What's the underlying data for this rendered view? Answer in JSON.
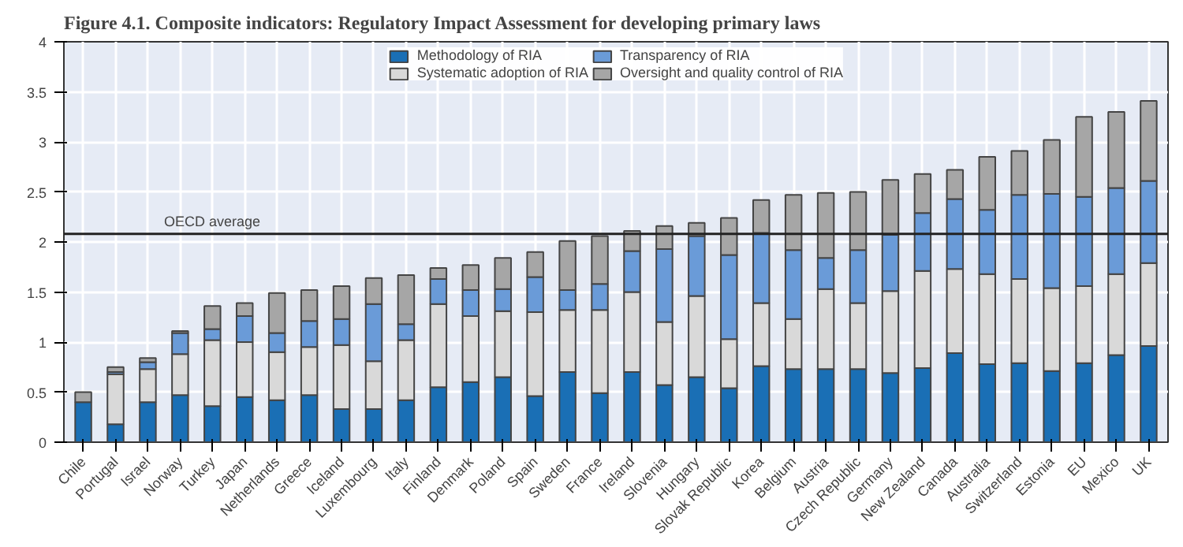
{
  "chart_data": {
    "type": "bar",
    "stacked": true,
    "title": "Figure 4.1. Composite indicators: Regulatory Impact Assessment for developing primary laws",
    "categories": [
      "Chile",
      "Portugal",
      "Israel",
      "Norway",
      "Turkey",
      "Japan",
      "Netherlands",
      "Greece",
      "Iceland",
      "Luxembourg",
      "Italy",
      "Finland",
      "Denmark",
      "Poland",
      "Spain",
      "Sweden",
      "France",
      "Ireland",
      "Slovenia",
      "Hungary",
      "Slovak Republic",
      "Korea",
      "Belgium",
      "Austria",
      "Czech Republic",
      "Germany",
      "New Zealand",
      "Canada",
      "Australia",
      "Switzerland",
      "Estonia",
      "EU",
      "Mexico",
      "UK"
    ],
    "series": [
      {
        "name": "Methodology of RIA",
        "color": "#1a6fb5",
        "values": [
          0.4,
          0.18,
          0.4,
          0.47,
          0.36,
          0.45,
          0.42,
          0.47,
          0.33,
          0.33,
          0.42,
          0.55,
          0.6,
          0.65,
          0.46,
          0.7,
          0.49,
          0.7,
          0.57,
          0.65,
          0.54,
          0.76,
          0.73,
          0.73,
          0.73,
          0.69,
          0.74,
          0.89,
          0.78,
          0.79,
          0.71,
          0.79,
          0.87,
          0.96
        ]
      },
      {
        "name": "Systematic adoption of RIA",
        "color": "#d9d9d9",
        "values": [
          null,
          0.5,
          0.33,
          0.41,
          0.66,
          0.55,
          0.48,
          0.48,
          0.64,
          0.48,
          0.6,
          0.83,
          0.66,
          0.66,
          0.84,
          0.62,
          0.83,
          0.8,
          0.63,
          0.81,
          0.49,
          0.63,
          0.5,
          0.8,
          0.66,
          0.82,
          0.97,
          0.84,
          0.9,
          0.84,
          0.83,
          0.77,
          0.81,
          0.83
        ]
      },
      {
        "name": "Transparency of RIA",
        "color": "#6a9bd8",
        "values": [
          null,
          0.02,
          0.07,
          0.21,
          0.11,
          0.26,
          0.19,
          0.26,
          0.26,
          0.57,
          0.16,
          0.25,
          0.26,
          0.22,
          0.35,
          0.2,
          0.26,
          0.41,
          0.73,
          0.6,
          0.84,
          0.7,
          0.69,
          0.31,
          0.53,
          0.56,
          0.58,
          0.7,
          0.64,
          0.84,
          0.94,
          0.89,
          0.86,
          0.82
        ]
      },
      {
        "name": "Oversight and quality control of RIA",
        "color": "#a6a6a6",
        "values": [
          0.1,
          0.05,
          0.04,
          0.02,
          0.23,
          0.13,
          0.4,
          0.31,
          0.33,
          0.26,
          0.49,
          0.11,
          0.25,
          0.31,
          0.25,
          0.49,
          0.48,
          0.2,
          0.23,
          0.13,
          0.37,
          0.33,
          0.55,
          0.65,
          0.58,
          0.55,
          0.39,
          0.29,
          0.53,
          0.44,
          0.54,
          0.8,
          0.76,
          0.8
        ]
      }
    ],
    "ylim": [
      0,
      4
    ],
    "yticks": [
      0,
      0.5,
      1,
      1.5,
      2,
      2.5,
      3,
      3.5,
      4
    ],
    "grid": true,
    "legend": "top",
    "ref_lines": [
      {
        "axis": "y",
        "value": 2.08,
        "label": "OECD average",
        "color": "#222222"
      }
    ]
  }
}
